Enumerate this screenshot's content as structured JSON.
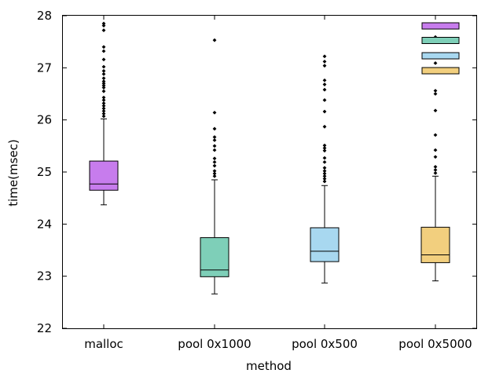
{
  "chart_data": {
    "type": "box",
    "xlabel": "method",
    "ylabel": "time(msec)",
    "ylim": [
      22,
      28
    ],
    "yticks": [
      22,
      23,
      24,
      25,
      26,
      27,
      28
    ],
    "categories": [
      "malloc",
      "pool 0x1000",
      "pool 0x500",
      "pool 0x5000"
    ],
    "series": [
      {
        "category": "malloc",
        "color": "#c77ced",
        "whisker_low": 24.37,
        "q1": 24.65,
        "median": 24.77,
        "q3": 25.21,
        "whisker_high": 26.02,
        "outliers": [
          26.07,
          26.12,
          26.17,
          26.22,
          26.27,
          26.32,
          26.38,
          26.43,
          26.55,
          26.62,
          26.66,
          26.7,
          26.74,
          26.8,
          26.88,
          26.94,
          27.02,
          27.16,
          27.32,
          27.4,
          27.72,
          27.81,
          27.85
        ]
      },
      {
        "category": "pool 0x1000",
        "color": "#7ecfb8",
        "whisker_low": 22.66,
        "q1": 22.99,
        "median": 23.12,
        "q3": 23.74,
        "whisker_high": 24.85,
        "outliers": [
          24.92,
          24.97,
          25.02,
          25.12,
          25.19,
          25.26,
          25.42,
          25.5,
          25.61,
          25.67,
          25.83,
          26.14,
          27.53
        ]
      },
      {
        "category": "pool 0x500",
        "color": "#a8d8f0",
        "whisker_low": 22.87,
        "q1": 23.28,
        "median": 23.48,
        "q3": 23.93,
        "whisker_high": 24.74,
        "outliers": [
          24.82,
          24.87,
          24.92,
          24.97,
          25.02,
          25.08,
          25.19,
          25.27,
          25.41,
          25.46,
          25.51,
          25.87,
          26.16,
          26.38,
          26.58,
          26.68,
          26.76,
          27.04,
          27.12,
          27.22
        ]
      },
      {
        "category": "pool 0x5000",
        "color": "#f2cf7e",
        "whisker_low": 22.91,
        "q1": 23.26,
        "median": 23.41,
        "q3": 23.94,
        "whisker_high": 24.92,
        "outliers": [
          24.98,
          25.04,
          25.1,
          25.29,
          25.42,
          25.71,
          26.18,
          26.5,
          26.56,
          27.09,
          27.59
        ]
      }
    ],
    "legend": {
      "placement": "top-right",
      "entries": [
        {
          "color": "#c77ced"
        },
        {
          "color": "#7ecfb8"
        },
        {
          "color": "#a8d8f0"
        },
        {
          "color": "#f2cf7e"
        }
      ]
    }
  }
}
